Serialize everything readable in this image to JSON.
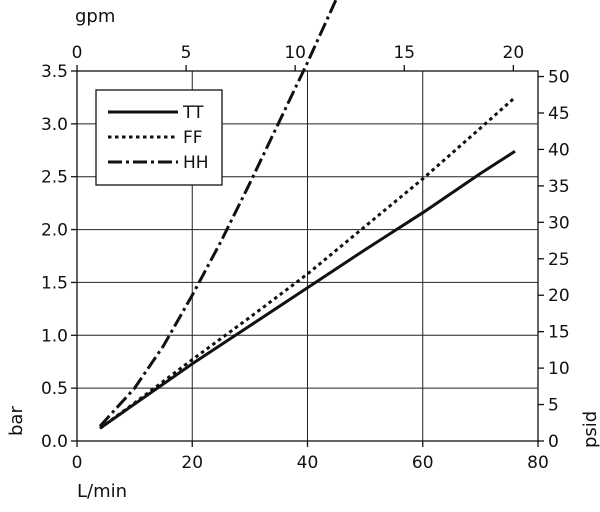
{
  "chart_data": {
    "type": "line",
    "xlabel": "L/min",
    "ylabel_left": "bar",
    "ylabel_right": "psid",
    "xlabel_top": "gpm",
    "xlim": [
      0,
      80
    ],
    "ylim": [
      0,
      3.5
    ],
    "top_xlim": [
      0,
      21.13
    ],
    "right_ylim": [
      0,
      50.76
    ],
    "x_ticks": [
      "0",
      "20",
      "40",
      "60",
      "80"
    ],
    "y_ticks": [
      "0.0",
      "0.5",
      "1.0",
      "1.5",
      "2.0",
      "2.5",
      "3.0",
      "3.5"
    ],
    "top_ticks": [
      "0",
      "5",
      "10",
      "15",
      "20"
    ],
    "right_ticks": [
      "0",
      "5",
      "10",
      "15",
      "20",
      "25",
      "30",
      "35",
      "40",
      "45",
      "50"
    ],
    "grid": true,
    "legend_position": "top-left",
    "series": [
      {
        "name": "TT",
        "style": "solid",
        "x": [
          4,
          10,
          20,
          30,
          40,
          50,
          60,
          70,
          76
        ],
        "y": [
          0.12,
          0.35,
          0.73,
          1.09,
          1.45,
          1.81,
          2.16,
          2.53,
          2.74
        ]
      },
      {
        "name": "FF",
        "style": "dotted",
        "x": [
          4,
          10,
          20,
          30,
          40,
          50,
          60,
          70,
          76
        ],
        "y": [
          0.12,
          0.36,
          0.77,
          1.17,
          1.58,
          2.03,
          2.48,
          2.96,
          3.25
        ]
      },
      {
        "name": "HH",
        "style": "dashdot",
        "x": [
          4,
          10,
          15,
          20,
          25,
          30,
          35,
          40,
          45
        ],
        "y": [
          0.14,
          0.5,
          0.9,
          1.38,
          1.89,
          2.44,
          3.01,
          3.58,
          4.18
        ]
      }
    ]
  }
}
